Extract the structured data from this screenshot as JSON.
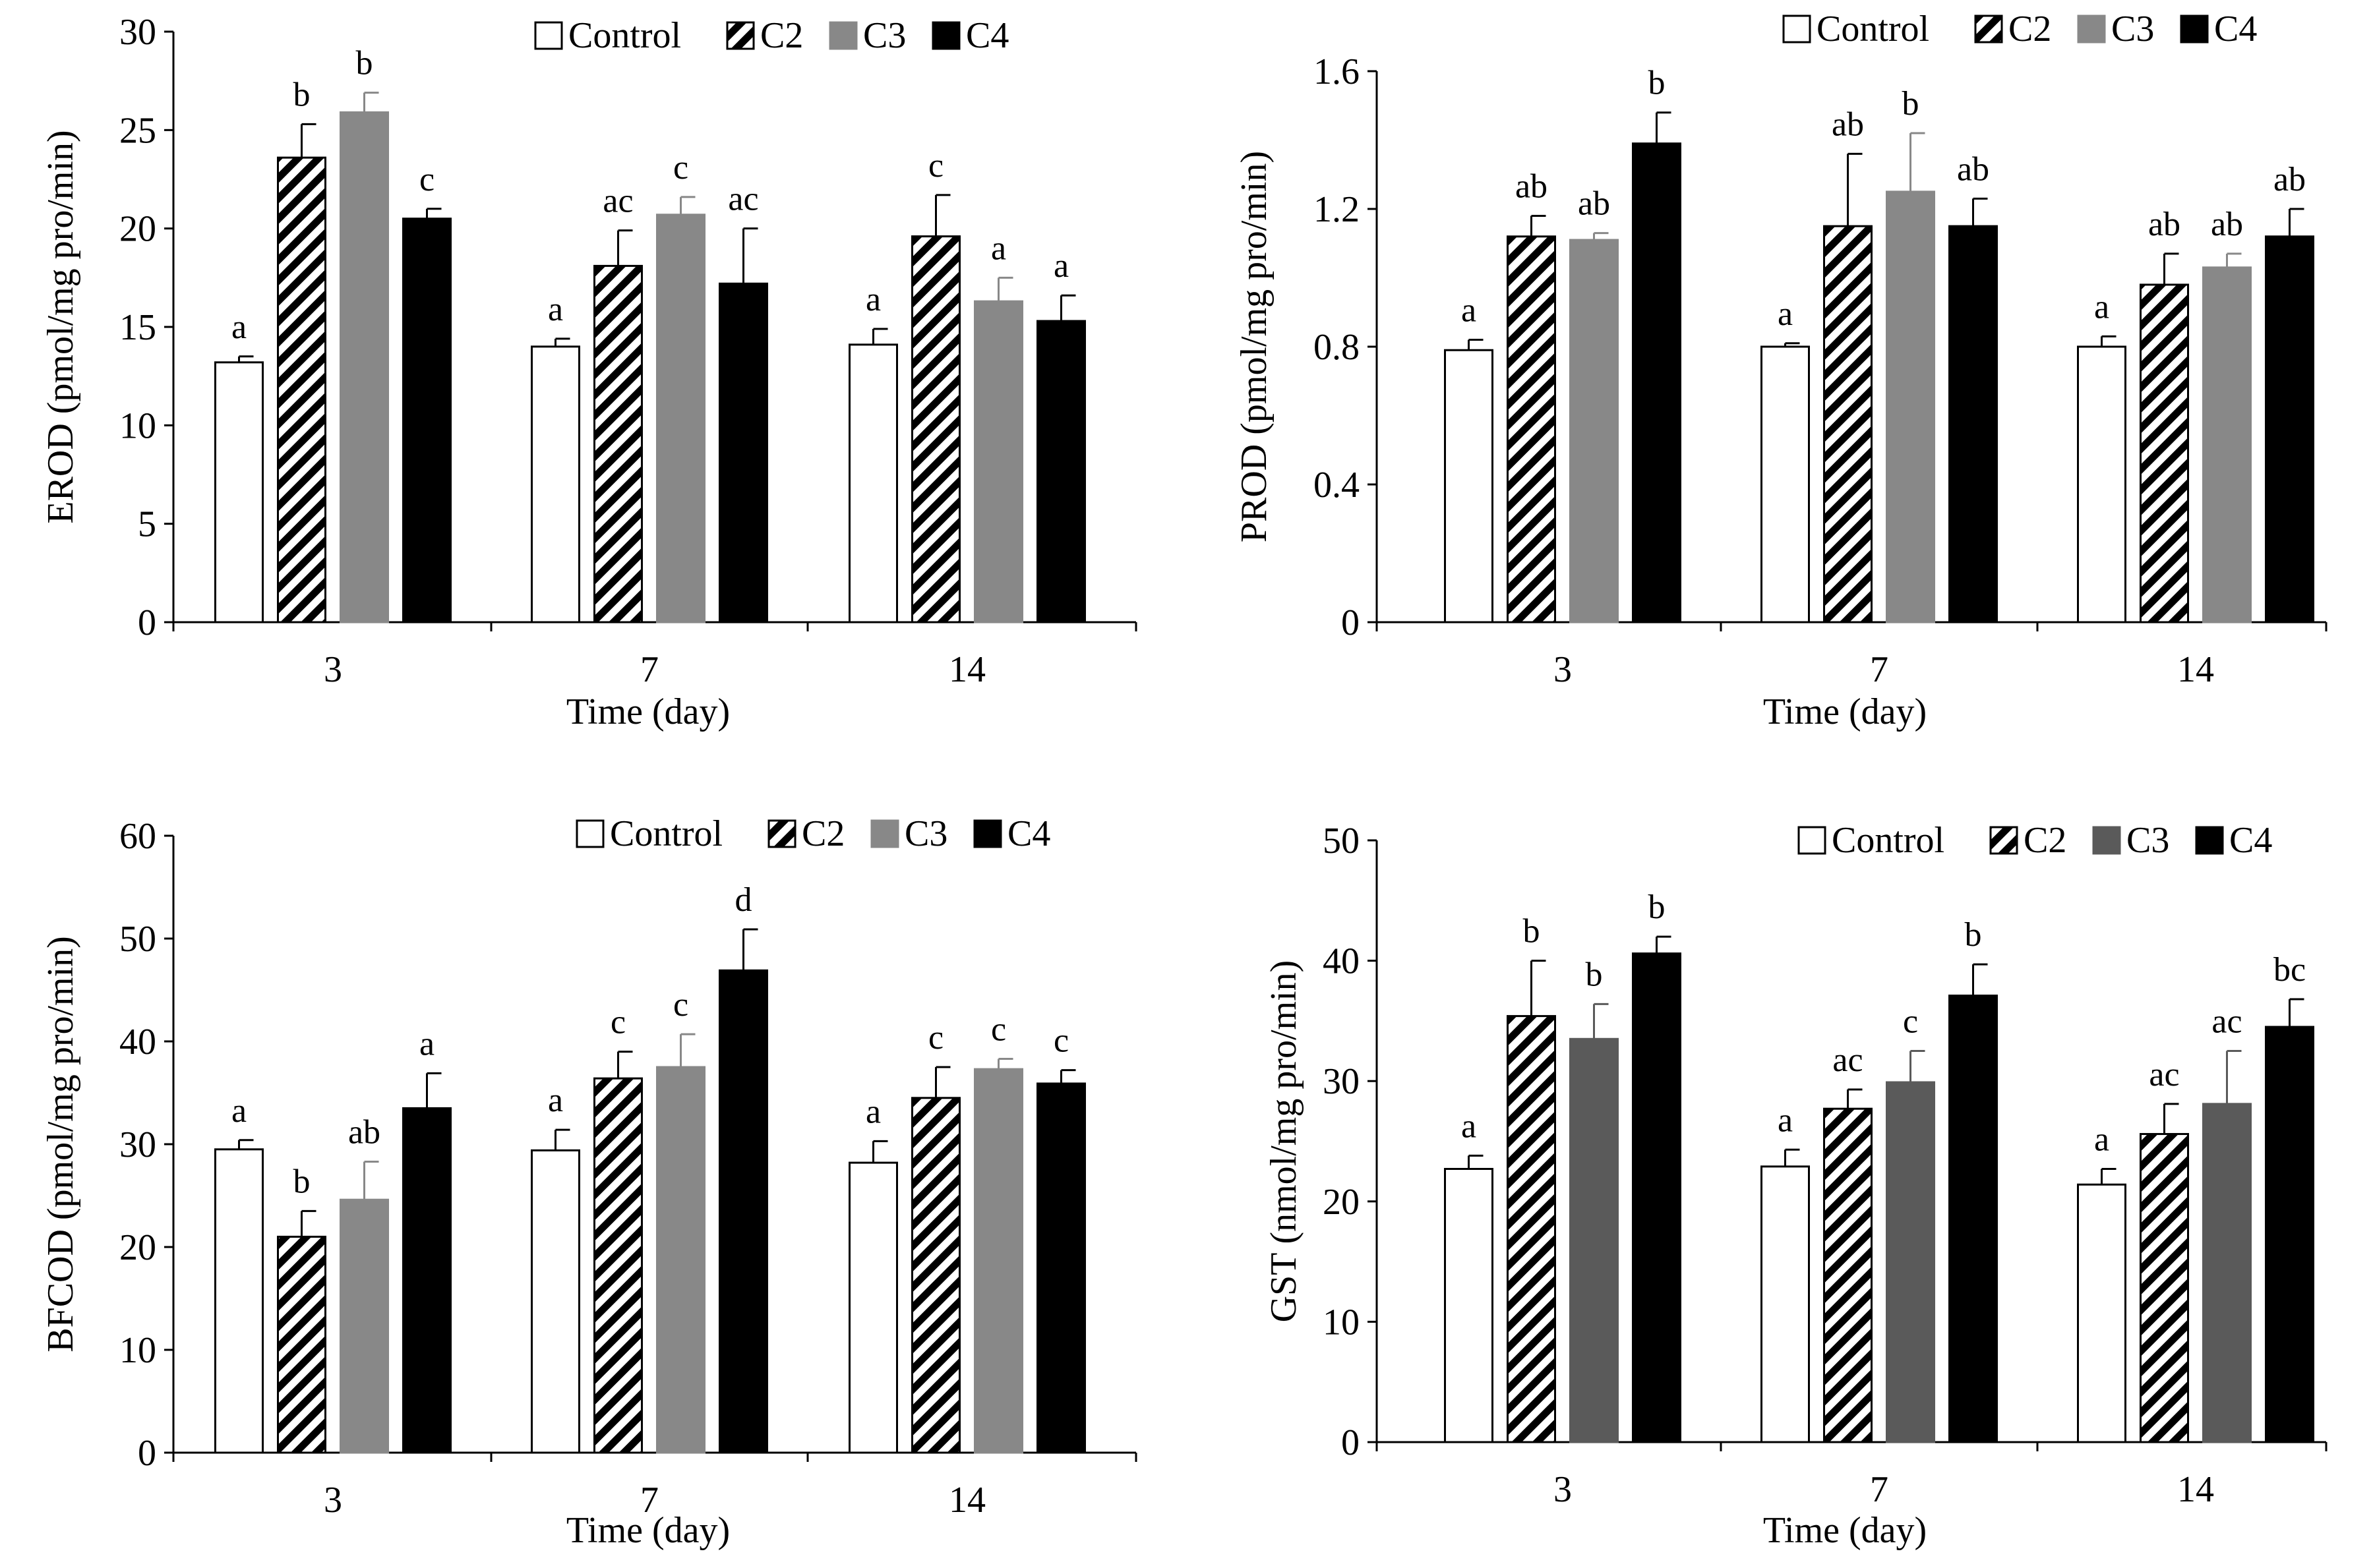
{
  "chart_data": [
    {
      "id": "erod",
      "type": "bar",
      "title": "",
      "xlabel": "Time (day)",
      "ylabel": "EROD (pmol/mg pro/min)",
      "categories": [
        "3",
        "7",
        "14"
      ],
      "ylim": [
        0,
        30
      ],
      "yticks": [
        0,
        5,
        10,
        15,
        20,
        25,
        30
      ],
      "ytick_labels": [
        "0",
        "5",
        "10",
        "15",
        "20",
        "25",
        "30"
      ],
      "legend": [
        "Control",
        "C2",
        "C3",
        "C4"
      ],
      "legend_position": "top-right",
      "series": [
        {
          "name": "Control",
          "values": [
            13.2,
            14.0,
            14.1
          ],
          "errors": [
            0.3,
            0.4,
            0.8
          ],
          "labels": [
            "a",
            "a",
            "a"
          ]
        },
        {
          "name": "C2",
          "values": [
            23.6,
            18.1,
            19.6
          ],
          "errors": [
            1.7,
            1.8,
            2.1
          ],
          "labels": [
            "b",
            "ac",
            "c"
          ]
        },
        {
          "name": "C3",
          "values": [
            25.9,
            20.7,
            16.3
          ],
          "errors": [
            1.0,
            0.9,
            1.2
          ],
          "labels": [
            "b",
            "c",
            "a"
          ]
        },
        {
          "name": "C4",
          "values": [
            20.5,
            17.2,
            15.3
          ],
          "errors": [
            0.5,
            2.8,
            1.3
          ],
          "labels": [
            "c",
            "ac",
            "a"
          ]
        }
      ]
    },
    {
      "id": "prod",
      "type": "bar",
      "title": "",
      "xlabel": "Time (day)",
      "ylabel": "PROD (pmol/mg pro/min)",
      "categories": [
        "3",
        "7",
        "14"
      ],
      "ylim": [
        0,
        1.6
      ],
      "yticks": [
        0,
        0.4,
        0.8,
        1.2,
        1.6
      ],
      "ytick_labels": [
        "0",
        "0.4",
        "0.8",
        "1.2",
        "1.6"
      ],
      "legend": [
        "Control",
        "C2",
        "C3",
        "C4"
      ],
      "legend_position": "top-right",
      "series": [
        {
          "name": "Control",
          "values": [
            0.79,
            0.8,
            0.8
          ],
          "errors": [
            0.03,
            0.01,
            0.03
          ],
          "labels": [
            "a",
            "a",
            "a"
          ]
        },
        {
          "name": "C2",
          "values": [
            1.12,
            1.15,
            0.98
          ],
          "errors": [
            0.06,
            0.21,
            0.09
          ],
          "labels": [
            "ab",
            "ab",
            "ab"
          ]
        },
        {
          "name": "C3",
          "values": [
            1.11,
            1.25,
            1.03
          ],
          "errors": [
            0.02,
            0.17,
            0.04
          ],
          "labels": [
            "ab",
            "b",
            "ab"
          ]
        },
        {
          "name": "C4",
          "values": [
            1.39,
            1.15,
            1.12
          ],
          "errors": [
            0.09,
            0.08,
            0.08
          ],
          "labels": [
            "b",
            "ab",
            "ab"
          ]
        }
      ]
    },
    {
      "id": "bfcod",
      "type": "bar",
      "title": "",
      "xlabel": "Time (day)",
      "ylabel": "BFCOD (pmol/mg pro/min)",
      "categories": [
        "3",
        "7",
        "14"
      ],
      "ylim": [
        0,
        60
      ],
      "yticks": [
        0,
        10,
        20,
        30,
        40,
        50,
        60
      ],
      "ytick_labels": [
        "0",
        "10",
        "20",
        "30",
        "40",
        "50",
        "60"
      ],
      "legend": [
        "Control",
        "C2",
        "C3",
        "C4"
      ],
      "legend_position": "top-right",
      "series": [
        {
          "name": "Control",
          "values": [
            29.5,
            29.4,
            28.2
          ],
          "errors": [
            0.9,
            2.0,
            2.1
          ],
          "labels": [
            "a",
            "a",
            "a"
          ]
        },
        {
          "name": "C2",
          "values": [
            21.0,
            36.4,
            34.5
          ],
          "errors": [
            2.5,
            2.6,
            3.0
          ],
          "labels": [
            "b",
            "c",
            "c"
          ]
        },
        {
          "name": "C3",
          "values": [
            24.6,
            37.5,
            37.3
          ],
          "errors": [
            3.7,
            3.2,
            1.0
          ],
          "labels": [
            "ab",
            "c",
            "c"
          ]
        },
        {
          "name": "C4",
          "values": [
            33.5,
            46.9,
            35.9
          ],
          "errors": [
            3.4,
            4.0,
            1.3
          ],
          "labels": [
            "a",
            "d",
            "c"
          ]
        }
      ]
    },
    {
      "id": "gst",
      "type": "bar",
      "title": "",
      "xlabel": "Time (day)",
      "ylabel": "GST (nmol/mg pro/min)",
      "categories": [
        "3",
        "7",
        "14"
      ],
      "ylim": [
        0,
        50
      ],
      "yticks": [
        0,
        10,
        20,
        30,
        40,
        50
      ],
      "ytick_labels": [
        "0",
        "10",
        "20",
        "30",
        "40",
        "50"
      ],
      "legend": [
        "Control",
        "C2",
        "C3",
        "C4"
      ],
      "legend_position": "top-right",
      "series": [
        {
          "name": "Control",
          "values": [
            22.7,
            22.9,
            21.4
          ],
          "errors": [
            1.1,
            1.4,
            1.3
          ],
          "labels": [
            "a",
            "a",
            "a"
          ]
        },
        {
          "name": "C2",
          "values": [
            35.4,
            27.7,
            25.6
          ],
          "errors": [
            4.6,
            1.6,
            2.5
          ],
          "labels": [
            "b",
            "ac",
            "ac"
          ]
        },
        {
          "name": "C3",
          "values": [
            33.5,
            29.9,
            28.1
          ],
          "errors": [
            2.9,
            2.6,
            4.4
          ],
          "labels": [
            "b",
            "c",
            "ac"
          ]
        },
        {
          "name": "C4",
          "values": [
            40.6,
            37.1,
            34.5
          ],
          "errors": [
            1.4,
            2.6,
            2.3
          ],
          "labels": [
            "b",
            "b",
            "bc"
          ]
        }
      ]
    }
  ],
  "styles": {
    "Control": {
      "fill": "#ffffff",
      "stroke": "#000000",
      "pattern": "none"
    },
    "C2": {
      "fill": "#ffffff",
      "stroke": "#000000",
      "pattern": "diagonal-stripes"
    },
    "C3": {
      "fill": "#888888",
      "stroke": "#888888",
      "pattern": "none"
    },
    "C3_gst": {
      "fill": "#5a5a5a",
      "stroke": "#5a5a5a",
      "pattern": "none"
    },
    "C4": {
      "fill": "#000000",
      "stroke": "#000000",
      "pattern": "none"
    }
  }
}
